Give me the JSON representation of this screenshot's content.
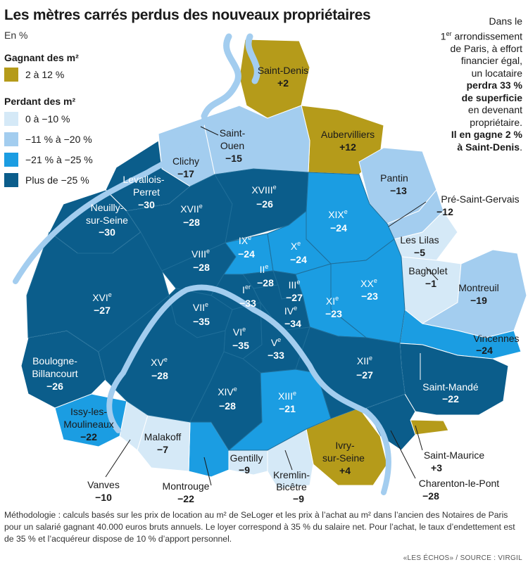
{
  "title": "Les mètres carrés perdus des nouveaux propriétaires",
  "subtitle": "En %",
  "legend": {
    "gain_title": "Gagnant des m²",
    "loss_title": "Perdant des m²",
    "items": [
      {
        "label": "2 à 12 %",
        "color": "#b59b1a"
      },
      {
        "label": "0 à −10 %",
        "color": "#d5e9f7"
      },
      {
        "label": "−11 % à −20 %",
        "color": "#a3cdef"
      },
      {
        "label": "−21 % à −25 %",
        "color": "#1b9de2"
      },
      {
        "label": "Plus de −25 %",
        "color": "#0b5d8b"
      }
    ]
  },
  "note": {
    "line1": "Dans le",
    "line2_sup": "er",
    "line2": "1",
    "line2b": " arrondissement",
    "line3": "de Paris, à effort",
    "line4": "financier égal,",
    "line5": "un locataire",
    "bold1": "perdra 33 %",
    "bold2": "de superficie",
    "line6": "en devenant",
    "line7": "propriétaire.",
    "bold3": "Il en gagne 2 %",
    "bold4": "à Saint-Denis",
    "end": "."
  },
  "areas": [
    {
      "name": "Saint-Denis",
      "value": "+2"
    },
    {
      "name": "Aubervilliers",
      "value": "+12"
    },
    {
      "name": "Saint-Ouen",
      "value": "−15"
    },
    {
      "name": "Clichy",
      "value": "−17"
    },
    {
      "name": "Levallois-Perret",
      "value": "−30"
    },
    {
      "name": "Neuilly-sur-Seine",
      "value": "−30"
    },
    {
      "name": "Pantin",
      "value": "−13"
    },
    {
      "name": "Pré-Saint-Gervais",
      "value": "−12"
    },
    {
      "name": "Les Lilas",
      "value": "−5"
    },
    {
      "name": "Bagnolet",
      "value": "−1"
    },
    {
      "name": "Montreuil",
      "value": "−19"
    },
    {
      "name": "Vincennes",
      "value": "−24"
    },
    {
      "name": "Saint-Mandé",
      "value": "−22"
    },
    {
      "name": "Saint-Maurice",
      "value": "+3"
    },
    {
      "name": "Charenton-le-Pont",
      "value": "−28"
    },
    {
      "name": "Ivry-sur-Seine",
      "value": "+4"
    },
    {
      "name": "Kremlin-Bicêtre",
      "value": "−9"
    },
    {
      "name": "Gentilly",
      "value": "−9"
    },
    {
      "name": "Montrouge",
      "value": "−22"
    },
    {
      "name": "Malakoff",
      "value": "−7"
    },
    {
      "name": "Vanves",
      "value": "−10"
    },
    {
      "name": "Issy-les-Moulineaux",
      "value": "−22"
    },
    {
      "name": "Boulogne-Billancourt",
      "value": "−26"
    }
  ],
  "arrondissements": [
    {
      "num": "I",
      "sup": "er",
      "value": "−33"
    },
    {
      "num": "II",
      "sup": "e",
      "value": "−28"
    },
    {
      "num": "III",
      "sup": "e",
      "value": "−27"
    },
    {
      "num": "IV",
      "sup": "e",
      "value": "−34"
    },
    {
      "num": "V",
      "sup": "e",
      "value": "−33"
    },
    {
      "num": "VI",
      "sup": "e",
      "value": "−35"
    },
    {
      "num": "VII",
      "sup": "e",
      "value": "−35"
    },
    {
      "num": "VIII",
      "sup": "e",
      "value": "−28"
    },
    {
      "num": "IX",
      "sup": "e",
      "value": "−24"
    },
    {
      "num": "X",
      "sup": "e",
      "value": "−24"
    },
    {
      "num": "XI",
      "sup": "e",
      "value": "−23"
    },
    {
      "num": "XII",
      "sup": "e",
      "value": "−27"
    },
    {
      "num": "XIII",
      "sup": "e",
      "value": "−21"
    },
    {
      "num": "XIV",
      "sup": "e",
      "value": "−28"
    },
    {
      "num": "XV",
      "sup": "e",
      "value": "−28"
    },
    {
      "num": "XVI",
      "sup": "e",
      "value": "−27"
    },
    {
      "num": "XVII",
      "sup": "e",
      "value": "−28"
    },
    {
      "num": "XVIII",
      "sup": "e",
      "value": "−26"
    },
    {
      "num": "XIX",
      "sup": "e",
      "value": "−24"
    },
    {
      "num": "XX",
      "sup": "e",
      "value": "−23"
    }
  ],
  "methodology": "Méthodologie : calculs basés sur les prix de location au m² de SeLoger et les prix à l’achat au m² dans l’ancien des Notaires de Paris pour un salarié gagnant 40.000 euros bruts annuels. Le loyer correspond à 35 % du salaire net. Pour l’achat, le taux d’endettement est de 35 % et l’acquéreur dispose de 10 % d’apport personnel.",
  "source": "«LES ÉCHOS» / SOURCE : VIRGIL"
}
